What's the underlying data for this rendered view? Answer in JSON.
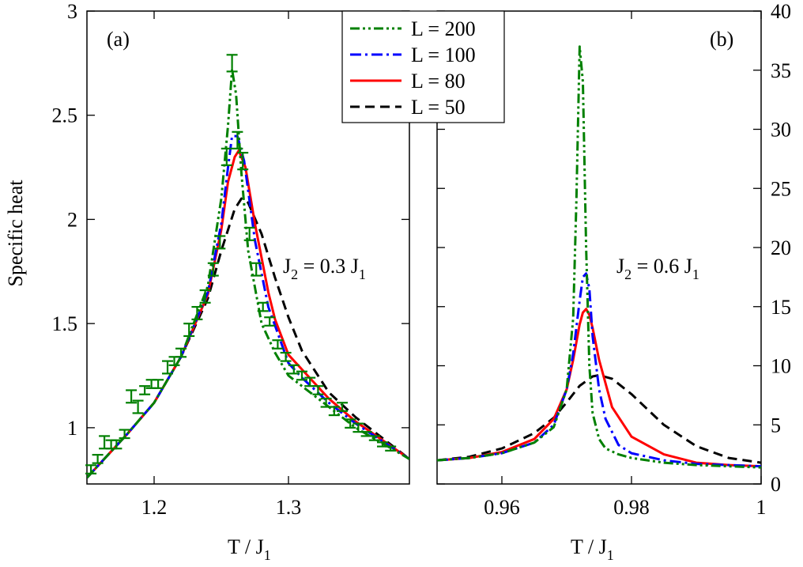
{
  "chart_data": [
    {
      "panel_label": "(a)",
      "type": "line",
      "xlabel": "T / J",
      "xlabel_sub": "1",
      "ylabel": "Specific heat",
      "xlim": [
        1.15,
        1.39
      ],
      "ylim": [
        0.73,
        3.0
      ],
      "xticks": [
        1.2,
        1.3
      ],
      "xtick_labels": [
        "1.2",
        "1.3"
      ],
      "yticks": [
        1.0,
        1.5,
        2.0,
        2.5,
        3.0
      ],
      "ytick_labels": [
        "1",
        "1.5",
        "2",
        "2.5",
        "3"
      ],
      "annotation": {
        "main": "J",
        "sub1": "2",
        "mid": " = 0.3 J",
        "sub2": "1"
      },
      "series": [
        {
          "name": "L = 50",
          "color": "#000000",
          "style": "dashed",
          "x": [
            1.15,
            1.18,
            1.2,
            1.22,
            1.24,
            1.25,
            1.26,
            1.265,
            1.27,
            1.28,
            1.29,
            1.3,
            1.31,
            1.33,
            1.35,
            1.39
          ],
          "y": [
            0.76,
            0.97,
            1.12,
            1.34,
            1.62,
            1.85,
            2.05,
            2.1,
            2.08,
            1.93,
            1.72,
            1.53,
            1.37,
            1.17,
            1.05,
            0.85
          ]
        },
        {
          "name": "L = 80",
          "color": "#ff0000",
          "style": "solid",
          "x": [
            1.15,
            1.18,
            1.2,
            1.22,
            1.24,
            1.25,
            1.255,
            1.26,
            1.263,
            1.268,
            1.275,
            1.285,
            1.29,
            1.3,
            1.31,
            1.33,
            1.35,
            1.39
          ],
          "y": [
            0.76,
            0.97,
            1.12,
            1.34,
            1.64,
            1.95,
            2.18,
            2.3,
            2.33,
            2.25,
            1.98,
            1.65,
            1.52,
            1.35,
            1.28,
            1.14,
            1.03,
            0.85
          ]
        },
        {
          "name": "L = 100",
          "color": "#0000ff",
          "style": "dashdot",
          "x": [
            1.15,
            1.18,
            1.2,
            1.22,
            1.24,
            1.25,
            1.255,
            1.258,
            1.262,
            1.267,
            1.275,
            1.285,
            1.3,
            1.31,
            1.33,
            1.35,
            1.39
          ],
          "y": [
            0.76,
            0.97,
            1.12,
            1.34,
            1.65,
            1.98,
            2.25,
            2.4,
            2.4,
            2.28,
            1.9,
            1.58,
            1.31,
            1.24,
            1.12,
            1.02,
            0.85
          ]
        },
        {
          "name": "L = 200",
          "color": "#008000",
          "style": "dashdotdot",
          "x": [
            1.15,
            1.18,
            1.2,
            1.22,
            1.24,
            1.25,
            1.255,
            1.258,
            1.261,
            1.265,
            1.27,
            1.28,
            1.29,
            1.3,
            1.31,
            1.33,
            1.35,
            1.39
          ],
          "y": [
            0.76,
            0.97,
            1.12,
            1.34,
            1.68,
            2.1,
            2.45,
            2.72,
            2.6,
            2.22,
            1.85,
            1.5,
            1.36,
            1.25,
            1.2,
            1.1,
            1.0,
            0.85
          ]
        }
      ],
      "error_bars": {
        "color": "#008000",
        "points": [
          {
            "x": 1.153,
            "y": 0.8,
            "e": 0.02
          },
          {
            "x": 1.158,
            "y": 0.85,
            "e": 0.02
          },
          {
            "x": 1.163,
            "y": 0.93,
            "e": 0.03
          },
          {
            "x": 1.168,
            "y": 0.92,
            "e": 0.02
          },
          {
            "x": 1.172,
            "y": 0.92,
            "e": 0.02
          },
          {
            "x": 1.178,
            "y": 0.97,
            "e": 0.02
          },
          {
            "x": 1.183,
            "y": 1.15,
            "e": 0.03
          },
          {
            "x": 1.188,
            "y": 1.1,
            "e": 0.03
          },
          {
            "x": 1.193,
            "y": 1.18,
            "e": 0.02
          },
          {
            "x": 1.198,
            "y": 1.21,
            "e": 0.02
          },
          {
            "x": 1.203,
            "y": 1.21,
            "e": 0.02
          },
          {
            "x": 1.21,
            "y": 1.29,
            "e": 0.03
          },
          {
            "x": 1.215,
            "y": 1.32,
            "e": 0.02
          },
          {
            "x": 1.22,
            "y": 1.36,
            "e": 0.02
          },
          {
            "x": 1.226,
            "y": 1.47,
            "e": 0.03
          },
          {
            "x": 1.232,
            "y": 1.55,
            "e": 0.03
          },
          {
            "x": 1.238,
            "y": 1.63,
            "e": 0.03
          },
          {
            "x": 1.244,
            "y": 1.76,
            "e": 0.03
          },
          {
            "x": 1.249,
            "y": 1.89,
            "e": 0.03
          },
          {
            "x": 1.254,
            "y": 2.3,
            "e": 0.04
          },
          {
            "x": 1.258,
            "y": 2.75,
            "e": 0.04
          },
          {
            "x": 1.262,
            "y": 2.38,
            "e": 0.04
          },
          {
            "x": 1.266,
            "y": 2.28,
            "e": 0.04
          },
          {
            "x": 1.271,
            "y": 1.93,
            "e": 0.03
          },
          {
            "x": 1.276,
            "y": 1.76,
            "e": 0.03
          },
          {
            "x": 1.281,
            "y": 1.58,
            "e": 0.02
          },
          {
            "x": 1.286,
            "y": 1.51,
            "e": 0.02
          },
          {
            "x": 1.292,
            "y": 1.4,
            "e": 0.02
          },
          {
            "x": 1.298,
            "y": 1.34,
            "e": 0.02
          },
          {
            "x": 1.304,
            "y": 1.28,
            "e": 0.02
          },
          {
            "x": 1.31,
            "y": 1.25,
            "e": 0.02
          },
          {
            "x": 1.316,
            "y": 1.22,
            "e": 0.02
          },
          {
            "x": 1.322,
            "y": 1.18,
            "e": 0.02
          },
          {
            "x": 1.328,
            "y": 1.12,
            "e": 0.02
          },
          {
            "x": 1.334,
            "y": 1.08,
            "e": 0.02
          },
          {
            "x": 1.34,
            "y": 1.1,
            "e": 0.02
          },
          {
            "x": 1.346,
            "y": 1.02,
            "e": 0.02
          },
          {
            "x": 1.352,
            "y": 1.0,
            "e": 0.02
          },
          {
            "x": 1.358,
            "y": 0.97,
            "e": 0.01
          },
          {
            "x": 1.364,
            "y": 0.95,
            "e": 0.01
          },
          {
            "x": 1.37,
            "y": 0.92,
            "e": 0.01
          },
          {
            "x": 1.376,
            "y": 0.9,
            "e": 0.01
          }
        ]
      }
    },
    {
      "panel_label": "(b)",
      "type": "line",
      "xlabel": "T / J",
      "xlabel_sub": "1",
      "xlim": [
        0.95,
        1.0
      ],
      "ylim": [
        0,
        40
      ],
      "xticks": [
        0.96,
        0.98,
        1.0
      ],
      "xtick_labels": [
        "0.96",
        "0.98",
        "1"
      ],
      "yticks": [
        0,
        5,
        10,
        15,
        20,
        25,
        30,
        35,
        40
      ],
      "ytick_labels": [
        "0",
        "5",
        "10",
        "15",
        "20",
        "25",
        "30",
        "35",
        "40"
      ],
      "annotation": {
        "main": "J",
        "sub1": "2",
        "mid": " = 0.6 J",
        "sub2": "1"
      },
      "series": [
        {
          "name": "L = 50",
          "color": "#000000",
          "style": "dashed",
          "x": [
            0.95,
            0.955,
            0.96,
            0.965,
            0.968,
            0.97,
            0.972,
            0.974,
            0.975,
            0.977,
            0.98,
            0.985,
            0.99,
            0.995,
            1.0
          ],
          "y": [
            2.0,
            2.3,
            3.0,
            4.3,
            5.6,
            6.9,
            8.3,
            9.1,
            9.2,
            8.9,
            7.6,
            5.0,
            3.2,
            2.2,
            1.8
          ]
        },
        {
          "name": "L = 80",
          "color": "#ff0000",
          "style": "solid",
          "x": [
            0.95,
            0.955,
            0.96,
            0.965,
            0.968,
            0.97,
            0.971,
            0.972,
            0.9725,
            0.973,
            0.9735,
            0.974,
            0.975,
            0.977,
            0.98,
            0.985,
            0.99,
            0.995,
            1.0
          ],
          "y": [
            2.0,
            2.2,
            2.7,
            3.8,
            5.5,
            8.0,
            10.5,
            13.5,
            14.5,
            14.8,
            14.3,
            13.2,
            10.5,
            6.5,
            4.0,
            2.5,
            1.8,
            1.6,
            1.5
          ]
        },
        {
          "name": "L = 100",
          "color": "#0000ff",
          "style": "dashdot",
          "x": [
            0.95,
            0.955,
            0.96,
            0.965,
            0.968,
            0.97,
            0.971,
            0.972,
            0.9725,
            0.973,
            0.9735,
            0.974,
            0.975,
            0.976,
            0.978,
            0.98,
            0.985,
            0.99,
            0.995,
            1.0
          ],
          "y": [
            2.0,
            2.2,
            2.6,
            3.5,
            5.0,
            8.0,
            11.0,
            15.5,
            17.5,
            17.8,
            16.5,
            12.5,
            8.0,
            5.5,
            3.3,
            2.6,
            2.0,
            1.7,
            1.6,
            1.5
          ]
        },
        {
          "name": "L = 200",
          "color": "#008000",
          "style": "dashdotdot",
          "x": [
            0.95,
            0.955,
            0.96,
            0.965,
            0.968,
            0.97,
            0.971,
            0.9715,
            0.972,
            0.9725,
            0.973,
            0.9735,
            0.974,
            0.975,
            0.976,
            0.978,
            0.98,
            0.985,
            0.99,
            0.995,
            1.0
          ],
          "y": [
            2.0,
            2.2,
            2.6,
            3.5,
            4.8,
            8.0,
            14.0,
            24.0,
            37.0,
            34.0,
            20.0,
            10.0,
            6.0,
            3.8,
            3.0,
            2.5,
            2.2,
            1.8,
            1.6,
            1.5,
            1.4
          ]
        }
      ]
    }
  ],
  "legend": {
    "position": "top-center",
    "entries": [
      {
        "label": "L = 200",
        "color": "#008000",
        "style": "dashdotdot"
      },
      {
        "label": "L = 100",
        "color": "#0000ff",
        "style": "dashdot"
      },
      {
        "label": "L = 80",
        "color": "#ff0000",
        "style": "solid"
      },
      {
        "label": "L = 50",
        "color": "#000000",
        "style": "dashed"
      }
    ]
  }
}
